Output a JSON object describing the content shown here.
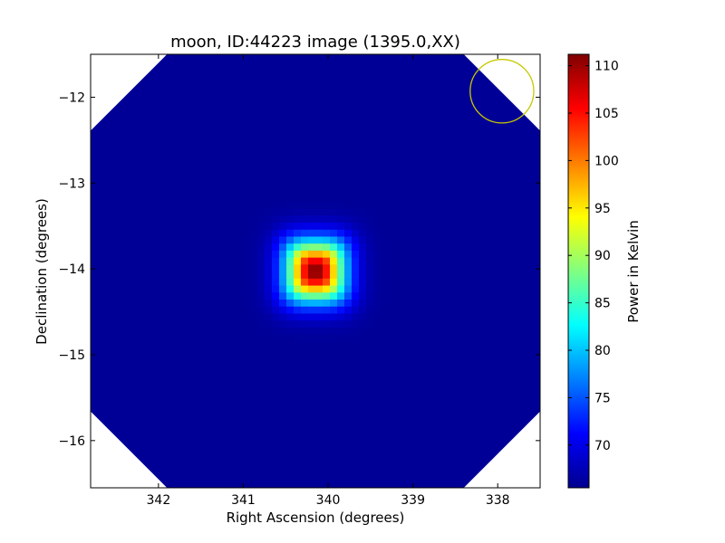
{
  "chart_data": {
    "type": "heatmap",
    "title": "moon, ID:44223 image (1395.0,XX)",
    "xlabel": "Right Ascension (degrees)",
    "ylabel": "Declination (degrees)",
    "xlim": [
      342.8,
      337.5
    ],
    "ylim": [
      -16.55,
      -11.5
    ],
    "x_ticks": [
      342,
      341,
      340,
      339,
      338
    ],
    "x_tick_labels": [
      "342",
      "341",
      "340",
      "339",
      "338"
    ],
    "y_ticks": [
      -12,
      -13,
      -14,
      -15,
      -16
    ],
    "y_tick_labels": [
      "−12",
      "−13",
      "−14",
      "−15",
      "−16"
    ],
    "colorbar": {
      "label": "Power in Kelvin",
      "colormap": "jet",
      "range": [
        65.5,
        111.2
      ],
      "ticks": [
        70,
        75,
        80,
        85,
        90,
        95,
        100,
        105,
        110
      ],
      "tick_labels": [
        "70",
        "75",
        "80",
        "85",
        "90",
        "95",
        "100",
        "105",
        "110"
      ]
    },
    "background_level": 66.5,
    "source": {
      "center_ra": 340.15,
      "center_dec": -14.02,
      "peak": 111.0,
      "half_width_deg": 0.42
    },
    "beam_circle": {
      "center_ra": 337.95,
      "center_dec": -11.93,
      "radius_deg": 0.37,
      "color": "#c8c800"
    },
    "grid": false
  }
}
